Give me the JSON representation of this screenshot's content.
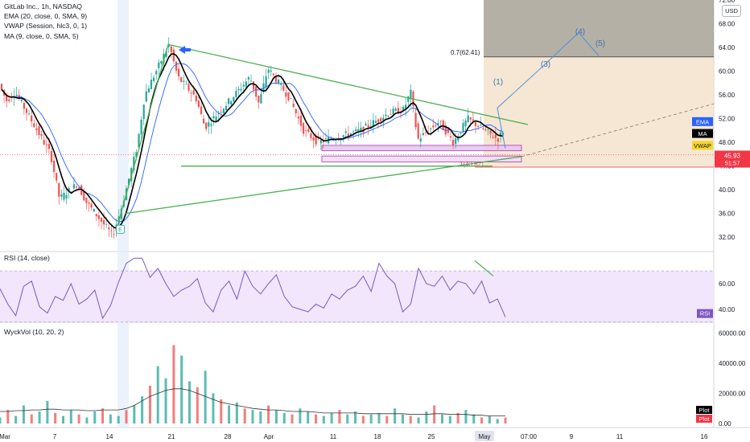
{
  "header": {
    "symbol": "GitLab Inc., 1h, NASDAQ",
    "indicators": [
      "EMA (20, close, 0, SMA, 9)",
      "VWAP (Session, hlc3, 0, 1)",
      "MA (9, close, 0, SMA, 5)"
    ],
    "currency": "USD"
  },
  "colors": {
    "up": "#26a69a",
    "down": "#ef5350",
    "ema": "#2962ff",
    "ma": "#000000",
    "trend": "#4caf50",
    "rsi": "#7e57c2",
    "fib_upper": "#8d8677",
    "fib_lower": "#f2ddc2",
    "projection": "#4a90d9",
    "price_tag": "#f23645",
    "vwap_tag": "#f5d52b"
  },
  "chart_data": [
    {
      "type": "candlestick",
      "title": "GitLab Inc., 1h, NASDAQ",
      "ylim": [
        30,
        72
      ],
      "y_ticks": [
        32,
        36,
        40,
        44,
        48,
        52,
        56,
        60,
        64,
        68,
        72
      ],
      "y_tick_labels": [
        "32.00",
        "36.00",
        "40.00",
        "44.00",
        "48.00",
        "52.00",
        "56.00",
        "60.00",
        "64.00",
        "68.00",
        "72.00"
      ],
      "x_tick_labels": [
        "Mar",
        "7",
        "14",
        "21",
        "28",
        "Apr",
        "11",
        "18",
        "25",
        "May",
        "07:00",
        "9",
        "11",
        "16"
      ],
      "highlighted_x_label": "May",
      "price_path": [
        [
          "Mar 1",
          58.5
        ],
        [
          "Mar 2",
          55.0
        ],
        [
          "Mar 3",
          56.5
        ],
        [
          "Mar 7",
          46.0
        ],
        [
          "Mar 8",
          38.5
        ],
        [
          "Mar 10",
          41.0
        ],
        [
          "Mar 11",
          38.0
        ],
        [
          "Mar 14",
          32.3
        ],
        [
          "Mar 15",
          36.5
        ],
        [
          "Mar 17",
          47.0
        ],
        [
          "Mar 18",
          56.0
        ],
        [
          "Mar 21",
          64.5
        ],
        [
          "Mar 22",
          59.0
        ],
        [
          "Mar 24",
          55.5
        ],
        [
          "Mar 25",
          50.5
        ],
        [
          "Mar 28",
          55.5
        ],
        [
          "Mar 30",
          59.0
        ],
        [
          "Mar 31",
          54.5
        ],
        [
          "Apr 1",
          60.5
        ],
        [
          "Apr 4",
          55.5
        ],
        [
          "Apr 6",
          50.0
        ],
        [
          "Apr 8",
          48.0
        ],
        [
          "Apr 11",
          49.0
        ],
        [
          "Apr 14",
          50.0
        ],
        [
          "Apr 18",
          53.0
        ],
        [
          "Apr 20",
          53.5
        ],
        [
          "Apr 21",
          56.5
        ],
        [
          "Apr 22",
          48.5
        ],
        [
          "Apr 25",
          51.5
        ],
        [
          "Apr 27",
          48.0
        ],
        [
          "Apr 29",
          52.0
        ],
        [
          "May 2",
          48.5
        ],
        [
          "May 3",
          52.5
        ],
        [
          "May 4",
          45.93
        ]
      ],
      "current_price": "45.93",
      "countdown": "51:57",
      "series_tags": [
        "EMA",
        "MA",
        "VWAP"
      ],
      "annotations": {
        "fib_level_label": "0.7(62.41)",
        "fib_level_value": 62.41,
        "fib_low_label": "1(43.82)",
        "fib_low_value": 43.82,
        "earnings_marker": "E",
        "wave_labels": [
          "(1)",
          "(3)",
          "(4)",
          "(5)"
        ],
        "wave_values": [
          57.5,
          60.5,
          66.0,
          64.0
        ],
        "support_level": 44.0
      }
    },
    {
      "type": "line",
      "title": "RSI (14, close)",
      "ylim": [
        33,
        82
      ],
      "y_ticks": [
        40,
        60
      ],
      "y_tick_labels": [
        "40.00",
        "60.00"
      ],
      "band": [
        30,
        70
      ],
      "tag": "RSI",
      "values": [
        56,
        44,
        35,
        58,
        62,
        42,
        37,
        50,
        47,
        60,
        44,
        48,
        55,
        33,
        43,
        61,
        76,
        80,
        80,
        65,
        72,
        60,
        50,
        55,
        58,
        64,
        45,
        38,
        55,
        62,
        48,
        70,
        58,
        52,
        60,
        67,
        50,
        42,
        40,
        38,
        44,
        41,
        52,
        48,
        55,
        58,
        66,
        54,
        76,
        66,
        60,
        38,
        44,
        72,
        60,
        58,
        66,
        55,
        62,
        60,
        52,
        62,
        45,
        48,
        34
      ]
    },
    {
      "type": "bar",
      "title": "WyckVol (10, 20, 2)",
      "ylim": [
        0,
        65000
      ],
      "y_ticks": [
        0,
        20000,
        40000,
        60000
      ],
      "y_tick_labels": [
        "0.00",
        "20000.00",
        "40000.00",
        "60000.00"
      ],
      "tags": [
        "Plot",
        "Plot"
      ],
      "values": [
        4000,
        9000,
        5000,
        12000,
        6000,
        8000,
        15000,
        7000,
        5000,
        9000,
        6000,
        4000,
        8000,
        10000,
        6000,
        5000,
        9000,
        12000,
        18000,
        25000,
        38000,
        30000,
        52000,
        45000,
        28000,
        24000,
        35000,
        20000,
        16000,
        12000,
        14000,
        10000,
        9000,
        8000,
        12000,
        9000,
        7000,
        6000,
        10000,
        8000,
        6000,
        5000,
        7000,
        9000,
        6000,
        8000,
        5000,
        6000,
        7000,
        5000,
        10000,
        6000,
        5000,
        4000,
        8000,
        12000,
        6000,
        5000,
        7000,
        9000,
        6000,
        4000,
        5000,
        3000,
        4000
      ],
      "average": [
        8000,
        8000,
        8500,
        8500,
        9000,
        9000,
        9500,
        9500,
        9000,
        9000,
        9000,
        8500,
        8500,
        9000,
        9000,
        9000,
        10000,
        12000,
        15000,
        18000,
        20000,
        22000,
        23000,
        23000,
        22000,
        20000,
        18000,
        16000,
        14000,
        13000,
        12000,
        11000,
        10000,
        9500,
        9000,
        9000,
        8500,
        8000,
        8000,
        8000,
        7500,
        7000,
        7000,
        7000,
        7000,
        7000,
        6500,
        6500,
        6500,
        6500,
        6500,
        6500,
        6000,
        6000,
        6000,
        6500,
        6500,
        6000,
        6000,
        6000,
        5500,
        5500,
        5000,
        5000,
        5000
      ]
    }
  ]
}
